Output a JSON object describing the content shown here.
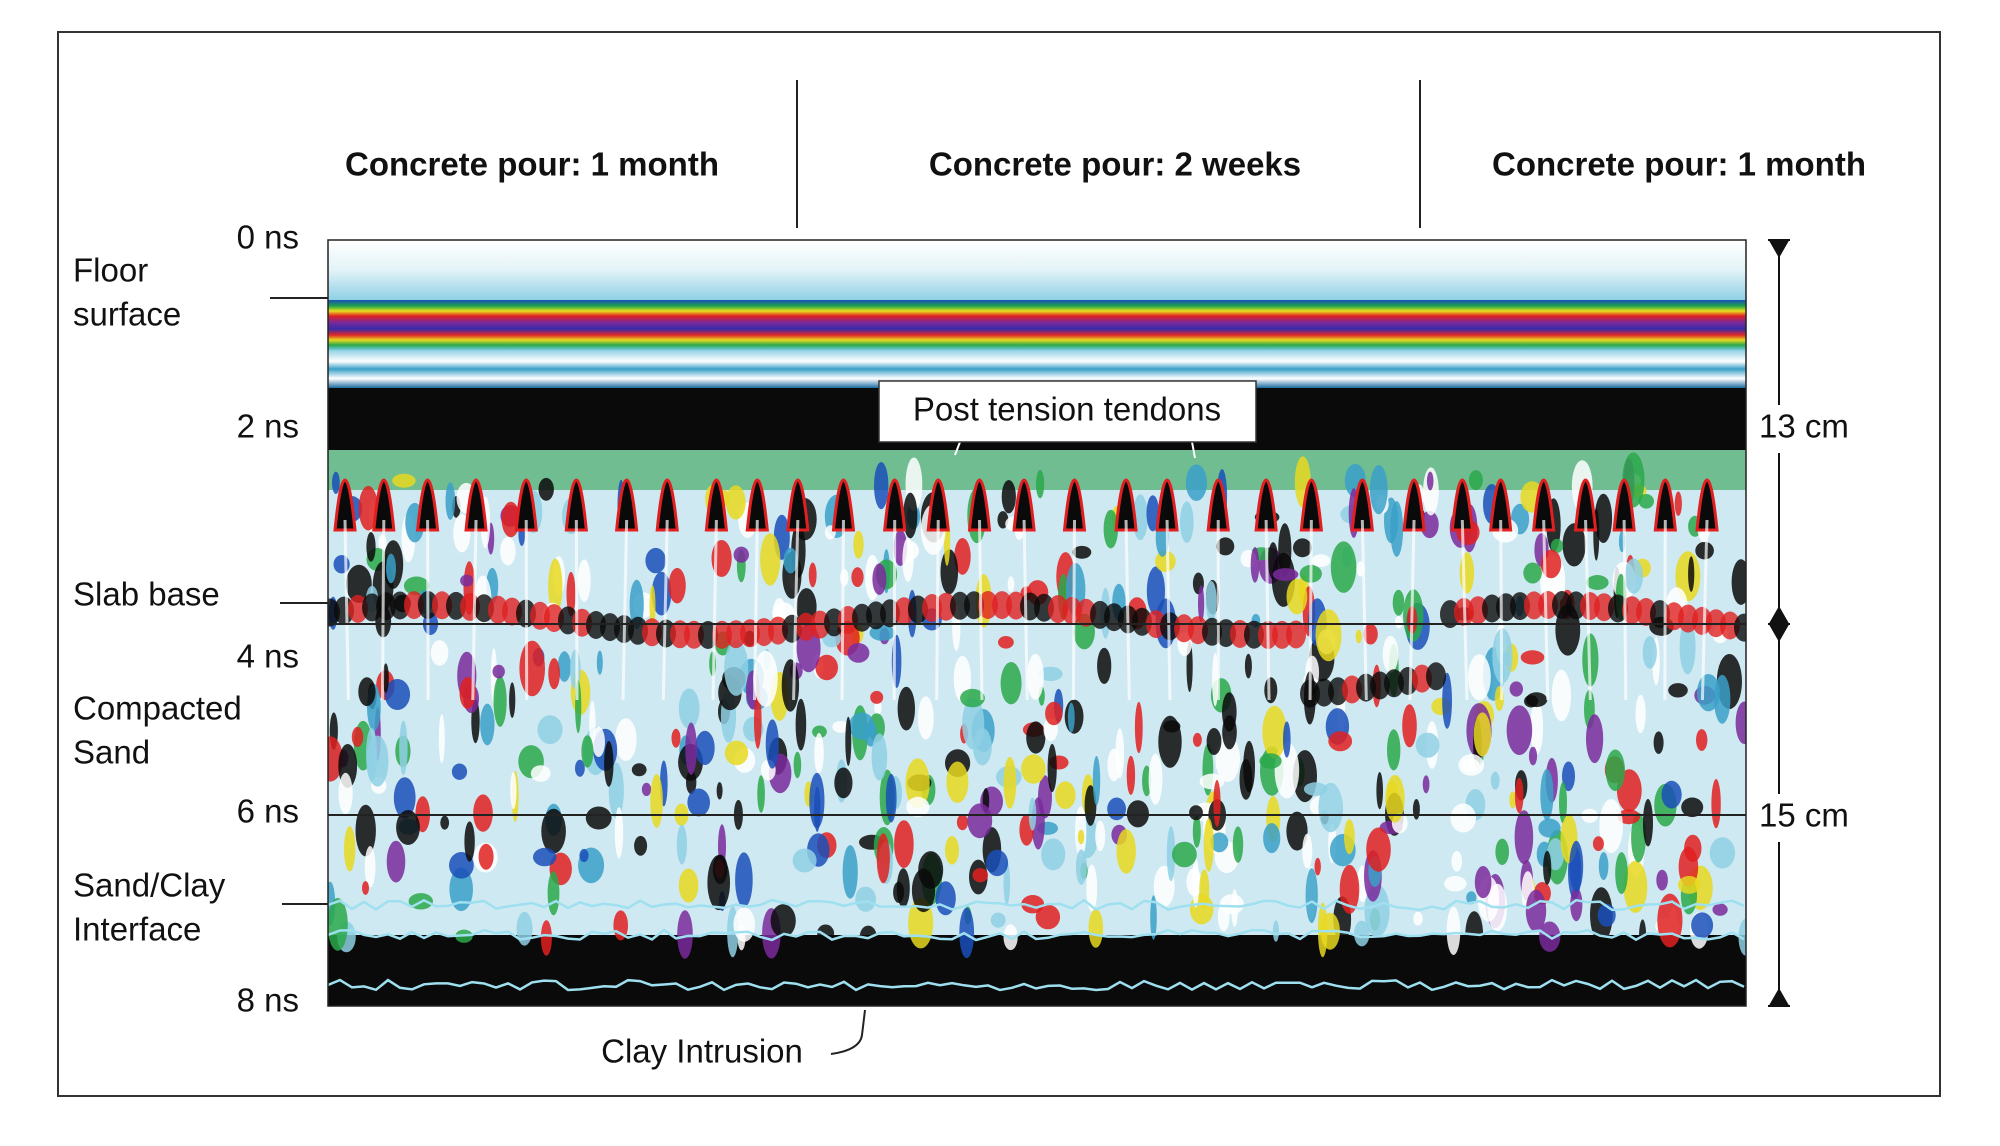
{
  "headers": [
    "Concrete pour: 1 month",
    "Concrete pour: 2 weeks",
    "Concrete pour: 1 month"
  ],
  "time_axis": [
    "0 ns",
    "2 ns",
    "4 ns",
    "6 ns",
    "8 ns"
  ],
  "layer_labels": {
    "floor_surface": [
      "Floor",
      "surface"
    ],
    "slab_base": [
      "Slab base"
    ],
    "compacted_sand": [
      "Compacted",
      "Sand"
    ],
    "sand_clay_interface": [
      "Sand/Clay",
      "Interface"
    ]
  },
  "depth_labels": [
    "13 cm",
    "15 cm"
  ],
  "callouts": {
    "post_tension": "Post tension tendons",
    "clay_intrusion": "Clay Intrusion"
  }
}
